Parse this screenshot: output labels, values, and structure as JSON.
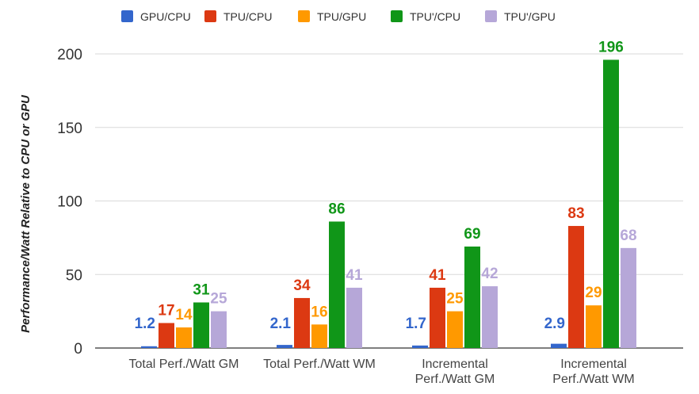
{
  "chart_data": {
    "type": "bar",
    "title": "",
    "xlabel": "",
    "ylabel": "Performance/Watt Relative to CPU or GPU",
    "ylim": [
      0,
      200
    ],
    "yticks": [
      "0",
      "50",
      "100",
      "150",
      "200"
    ],
    "grid": true,
    "legend_position": "top",
    "categories": [
      [
        "Total Perf./Watt GM"
      ],
      [
        "Total Perf./Watt WM"
      ],
      [
        "Incremental",
        "Perf./Watt GM"
      ],
      [
        "Incremental",
        "Perf./Watt WM"
      ]
    ],
    "series": [
      {
        "name": "GPU/CPU",
        "color": "#3366cc",
        "values": [
          1.2,
          2.1,
          1.7,
          2.9
        ],
        "labels": [
          "1.2",
          "2.1",
          "1.7",
          "2.9"
        ]
      },
      {
        "name": "TPU/CPU",
        "color": "#dc3912",
        "values": [
          17,
          34,
          41,
          83
        ],
        "labels": [
          "17",
          "34",
          "41",
          "83"
        ]
      },
      {
        "name": "TPU/GPU",
        "color": "#ff9900",
        "values": [
          14,
          16,
          25,
          29
        ],
        "labels": [
          "14",
          "16",
          "25",
          "29"
        ]
      },
      {
        "name": "TPU'/CPU",
        "color": "#109618",
        "values": [
          31,
          86,
          69,
          196
        ],
        "labels": [
          "31",
          "86",
          "69",
          "196"
        ]
      },
      {
        "name": "TPU'/GPU",
        "color": "#b6a7d8",
        "values": [
          25,
          41,
          42,
          68
        ],
        "labels": [
          "25",
          "41",
          "42",
          "68"
        ]
      }
    ]
  }
}
